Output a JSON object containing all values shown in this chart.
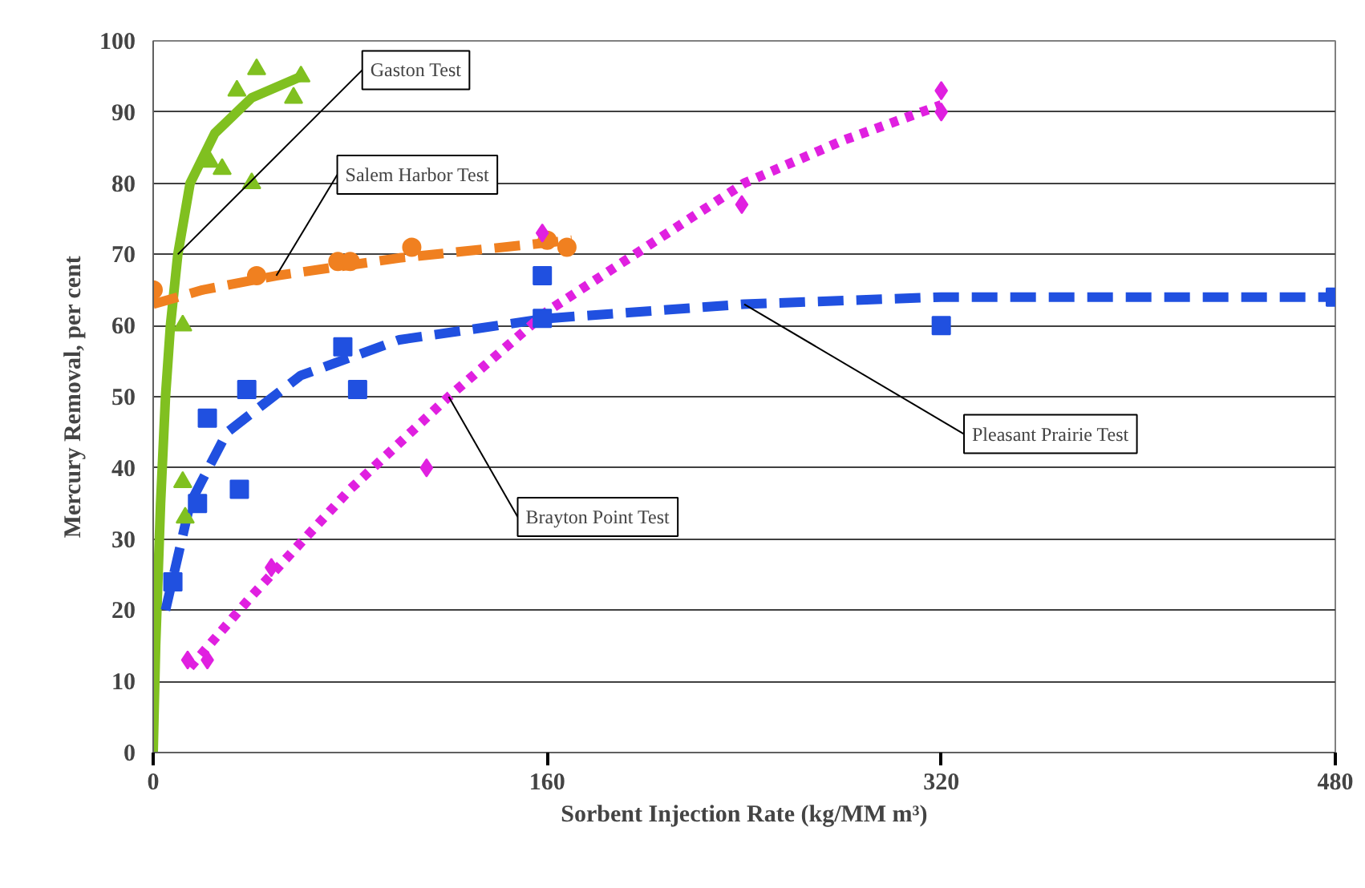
{
  "chart_data": {
    "type": "scatter",
    "xlabel": "Sorbent Injection Rate (kg/MM m³)",
    "ylabel": "Mercury Removal, per cent",
    "xlim": [
      0,
      480
    ],
    "xticks": [
      0,
      160,
      320,
      480
    ],
    "ylim": [
      0,
      100
    ],
    "yticks": [
      0,
      10,
      20,
      30,
      40,
      50,
      60,
      70,
      80,
      90,
      100
    ],
    "grid": "y",
    "series": [
      {
        "marker": "triangle",
        "color": "#80c020",
        "x": [
          12,
          13,
          12,
          23,
          28,
          34,
          40,
          42,
          57,
          60
        ],
        "values": [
          38,
          33,
          60,
          83,
          82,
          93,
          80,
          96,
          92,
          95
        ]
      },
      {
        "type": "line",
        "line_style": "solid",
        "color": "#80c020",
        "x": [
          0,
          1,
          3,
          5,
          7,
          10,
          15,
          25,
          40,
          60
        ],
        "values": [
          0,
          15,
          35,
          50,
          60,
          70,
          80,
          87,
          92,
          95
        ]
      },
      {
        "marker": "circle",
        "color": "#f08020",
        "x": [
          0,
          42,
          75,
          80,
          105,
          160,
          168
        ],
        "values": [
          65,
          67,
          69,
          69,
          71,
          72,
          71
        ]
      },
      {
        "type": "line",
        "line_style": "dashed",
        "color": "#f08020",
        "x": [
          0,
          20,
          50,
          100,
          170
        ],
        "values": [
          63,
          65,
          67,
          69.5,
          72
        ]
      },
      {
        "marker": "square",
        "color": "#2050e0",
        "x": [
          8,
          18,
          22,
          35,
          38,
          77,
          83,
          158,
          158,
          320,
          480
        ],
        "values": [
          24,
          35,
          47,
          37,
          51,
          57,
          51,
          67,
          61,
          60,
          64
        ]
      },
      {
        "type": "line",
        "line_style": "dashed",
        "color": "#2050e0",
        "x": [
          5,
          15,
          30,
          60,
          100,
          160,
          240,
          320,
          480
        ],
        "values": [
          20,
          35,
          45,
          53,
          58,
          61,
          63,
          64,
          64
        ]
      },
      {
        "marker": "diamond",
        "color": "#e020e0",
        "x": [
          14,
          22,
          48,
          111,
          158,
          239,
          320,
          320
        ],
        "values": [
          13,
          13,
          26,
          40,
          73,
          77,
          93,
          90
        ]
      },
      {
        "type": "line",
        "line_style": "dotted",
        "color": "#e020e0",
        "x": [
          15,
          40,
          80,
          120,
          160,
          200,
          240,
          280,
          320
        ],
        "values": [
          12,
          22,
          37,
          50,
          62,
          71,
          80,
          86,
          91
        ]
      }
    ],
    "annotations": [
      {
        "text": "Gaston Test",
        "x": 10,
        "y": 70
      },
      {
        "text": "Salem Harbor Test",
        "x": 50,
        "y": 67
      },
      {
        "text": "Pleasant Prairie Test",
        "x": 240,
        "y": 63
      },
      {
        "text": "Brayton Point Test",
        "x": 120,
        "y": 50
      }
    ]
  }
}
